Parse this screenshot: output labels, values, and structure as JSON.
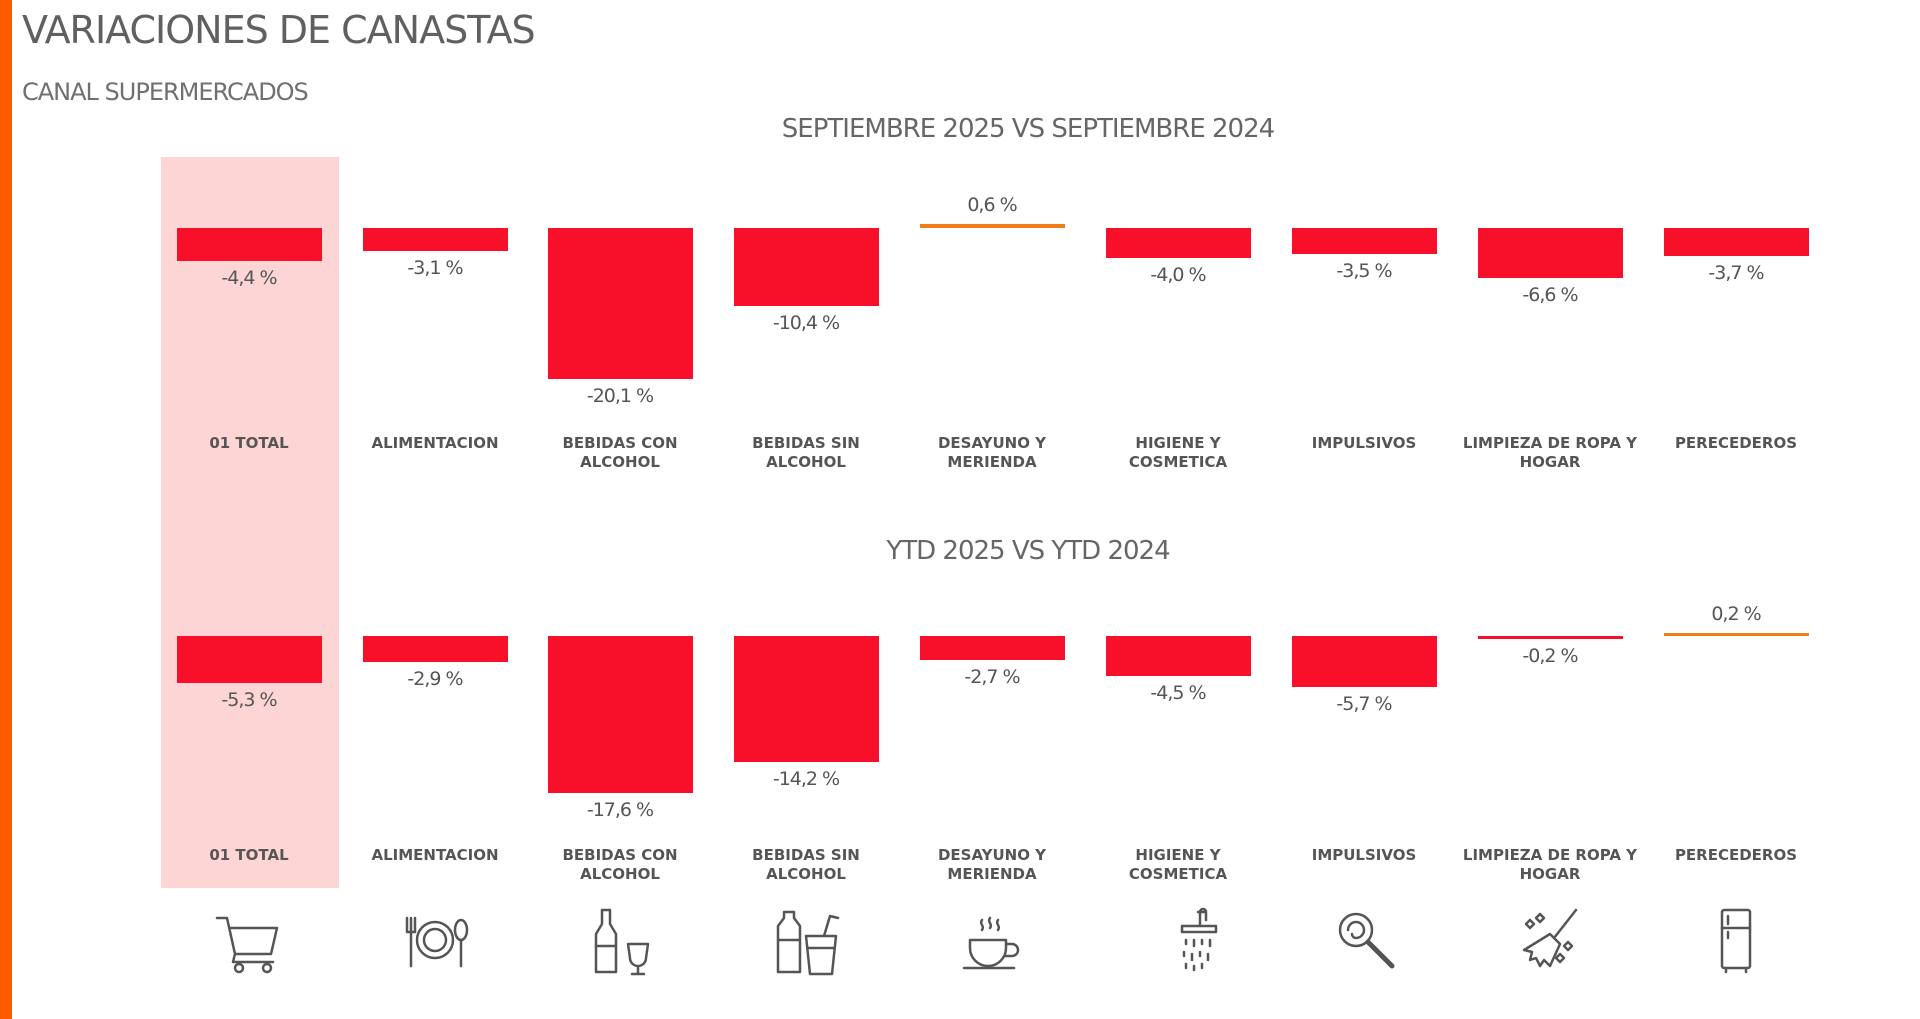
{
  "title": "VARIACIONES DE CANASTAS",
  "subtitle": "CANAL SUPERMERCADOS",
  "colors": {
    "negative": "#f8102a",
    "positive": "#f07d19",
    "highlight": "#fdd5d5",
    "accent": "#ff5a00"
  },
  "chart_data": [
    {
      "type": "bar",
      "title": "SEPTIEMBRE 2025 VS SEPTIEMBRE 2024",
      "unit": "%",
      "categories": [
        "01 TOTAL",
        "ALIMENTACION",
        "BEBIDAS CON ALCOHOL",
        "BEBIDAS SIN ALCOHOL",
        "DESAYUNO Y MERIENDA",
        "HIGIENE Y COSMETICA",
        "IMPULSIVOS",
        "LIMPIEZA DE ROPA Y HOGAR",
        "PERECEDEROS"
      ],
      "values": [
        -4.4,
        -3.1,
        -20.1,
        -10.4,
        0.6,
        -4.0,
        -3.5,
        -6.6,
        -3.7
      ],
      "labels": [
        "-4,4 %",
        "-3,1 %",
        "-20,1 %",
        "-10,4 %",
        "0,6 %",
        "-4,0 %",
        "-3,5 %",
        "-6,6 %",
        "-3,7 %"
      ]
    },
    {
      "type": "bar",
      "title": "YTD 2025 VS YTD 2024",
      "unit": "%",
      "categories": [
        "01 TOTAL",
        "ALIMENTACION",
        "BEBIDAS CON ALCOHOL",
        "BEBIDAS SIN ALCOHOL",
        "DESAYUNO Y MERIENDA",
        "HIGIENE Y COSMETICA",
        "IMPULSIVOS",
        "LIMPIEZA DE ROPA Y HOGAR",
        "PERECEDEROS"
      ],
      "values": [
        -5.3,
        -2.9,
        -17.6,
        -14.2,
        -2.7,
        -4.5,
        -5.7,
        -0.2,
        0.2
      ],
      "labels": [
        "-5,3 %",
        "-2,9 %",
        "-17,6 %",
        "-14,2 %",
        "-2,7 %",
        "-4,5 %",
        "-5,7 %",
        "-0,2 %",
        "0,2 %"
      ]
    }
  ],
  "icons": [
    "cart-icon",
    "plate-cutlery-icon",
    "wine-bottle-glass-icon",
    "water-bottle-cup-icon",
    "coffee-cup-icon",
    "shower-icon",
    "lollipop-icon",
    "broom-icon",
    "fridge-icon"
  ]
}
